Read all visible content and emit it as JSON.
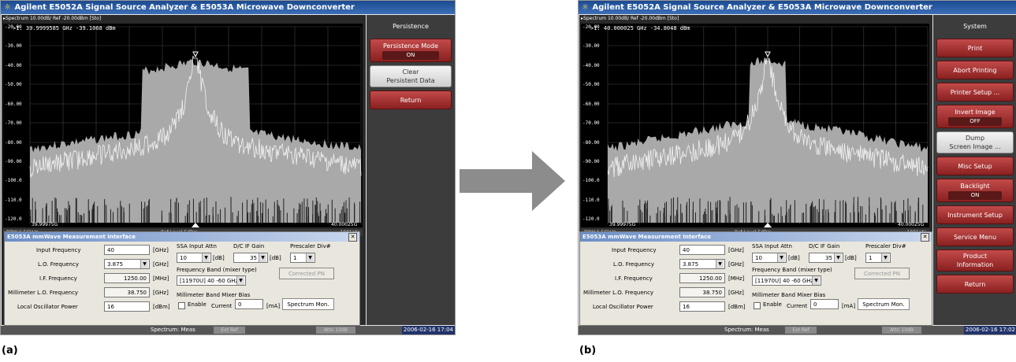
{
  "screens": [
    {
      "id": "a",
      "caption": "(a)",
      "window_title": "Agilent E5052A Signal Source Analyzer & E5053A Microwave Downconverter",
      "trace_header": "▸Spectrum 10.00dB/ Ref -20.00dBm [Sto]",
      "marker_readout": ">1:  39.9999585 GHz   -39.1068 dBm",
      "y_ticks": [
        "-20.00",
        "-30.00",
        "-40.00",
        "-50.00",
        "-60.00",
        "-70.00",
        "-80.00",
        "-90.00",
        "-100.0",
        "-110.0",
        "-120.0"
      ],
      "x_start": "39.99975G",
      "x_stop": "40.00025G",
      "rbw": "RBW 1.56kHz",
      "ref_level": "Ref Level 5dBm",
      "points": "1001pts",
      "menu_title": "Persistence",
      "softkeys": [
        {
          "label": "Persistence Mode",
          "value": "ON",
          "style": "red"
        },
        {
          "label": "Clear\nPersistent Data",
          "value": "",
          "style": "light"
        },
        {
          "label": "Return",
          "value": "",
          "style": "red"
        }
      ],
      "clock": "2006-02-16 17:04",
      "status_text": "Spectrum: Meas",
      "bottom_segments": [
        "Ext Ref",
        "Attn 10dB"
      ]
    },
    {
      "id": "b",
      "caption": "(b)",
      "window_title": "Agilent E5052A Signal Source Analyzer & E5053A Microwave Downconverter",
      "trace_header": "▸Spectrum 10.00dB/ Ref -20.00dBm [Sto]",
      "marker_readout": ">1:  40.000025 GHz   -34.8048 dBm",
      "y_ticks": [
        "-20.00",
        "-30.00",
        "-40.00",
        "-50.00",
        "-60.00",
        "-70.00",
        "-80.00",
        "-90.00",
        "-100.0",
        "-110.0",
        "-120.0"
      ],
      "x_start": "39.99975G",
      "x_stop": "40.00025G",
      "rbw": "RBW 1.56kHz",
      "ref_level": "Ref Level 5dBm",
      "points": "1001pts",
      "menu_title": "System",
      "softkeys": [
        {
          "label": "Print",
          "value": "",
          "style": "red"
        },
        {
          "label": "Abort Printing",
          "value": "",
          "style": "red"
        },
        {
          "label": "Printer Setup ...",
          "value": "",
          "style": "red"
        },
        {
          "label": "Invert Image",
          "value": "OFF",
          "style": "red"
        },
        {
          "label": "Dump\nScreen Image ...",
          "value": "",
          "style": "light"
        },
        {
          "label": "Misc Setup",
          "value": "",
          "style": "red"
        },
        {
          "label": "Backlight",
          "value": "ON",
          "style": "red"
        },
        {
          "label": "Instrument Setup",
          "value": "",
          "style": "red"
        },
        {
          "label": "Service Menu",
          "value": "",
          "style": "red"
        },
        {
          "label": "Product\nInformation",
          "value": "",
          "style": "red"
        },
        {
          "label": "Return",
          "value": "",
          "style": "red"
        }
      ],
      "clock": "2006-02-16 17:02",
      "status_text": "Spectrum: Meas",
      "bottom_segments": [
        "Ext Ref",
        "Attn 10dB"
      ]
    }
  ],
  "dialog": {
    "title": "E5053A mmWave Measurement Interface",
    "close": "✕",
    "input_frequency_label": "Input Frequency",
    "input_frequency_value": "40",
    "lo_frequency_label": "L.O. Frequency",
    "lo_frequency_value": "3.875",
    "if_frequency_label": "I.F. Frequency",
    "if_frequency_value": "1250.00",
    "mm_lo_frequency_label": "Millimeter L.O. Frequency",
    "mm_lo_frequency_value": "38.750",
    "lo_power_label": "Local Oscillator Power",
    "lo_power_value": "16",
    "unit_ghz": "[GHz]",
    "unit_mhz": "[MHz]",
    "unit_dbm": "[dBm]",
    "unit_db": "[dB]",
    "unit_ma": "[mA]",
    "ssa_attn_label": "SSA Input Attn",
    "ssa_attn_value": "10",
    "dc_if_gain_label": "D/C IF Gain",
    "dc_if_gain_value": "35",
    "prescaler_label": "Prescaler Div#",
    "prescaler_value": "1",
    "band_label": "Frequency Band (mixer type)",
    "band_value": "[11970U] 40 -60  GHz",
    "corrected_pn_button": "Corrected PN",
    "bias_label": "Millimeter Band Mixer Bias",
    "enable_label": "Enable",
    "current_label": "Current",
    "current_value": "0",
    "spectrum_mon_button": "Spectrum Mon."
  },
  "arrow_color": "#8c8c8c"
}
